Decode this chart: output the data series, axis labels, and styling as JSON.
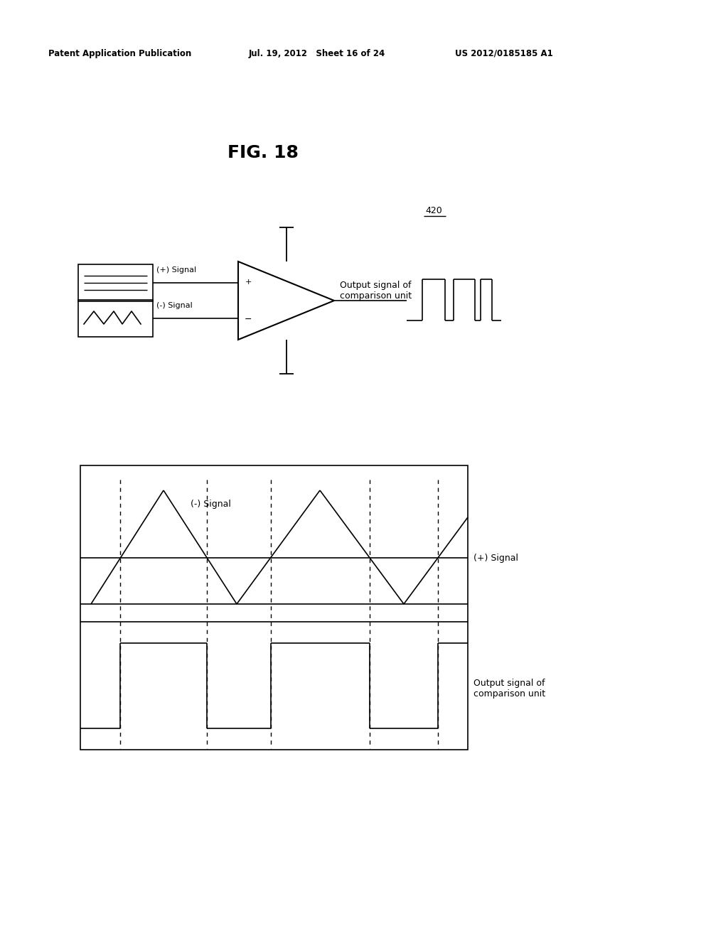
{
  "bg_color": "#ffffff",
  "header_left": "Patent Application Publication",
  "header_mid": "Jul. 19, 2012   Sheet 16 of 24",
  "header_right": "US 2012/0185185 A1",
  "fig_label": "FIG. 18",
  "label_420": "420",
  "plus_signal_label": "(+) Signal",
  "minus_signal_label": "(-) Signal",
  "output_label_top": "Output signal of\ncomparison unit",
  "output_label_bottom": "Output signal of\ncomparison unit",
  "plus_signal_label_bottom": "(+) Signal",
  "minus_signal_label_bottom": "(-) Signal"
}
